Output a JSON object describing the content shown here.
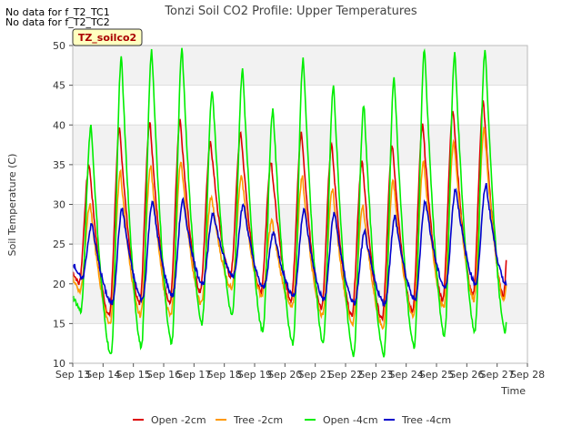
{
  "notes": [
    "No data for f_T2_TC1",
    "No data for f_T2_TC2"
  ],
  "badge": "TZ_soilco2",
  "chart_data": {
    "type": "line",
    "title": "Tonzi Soil CO2 Profile: Upper Temperatures",
    "xlabel": "Time",
    "ylabel": "Soil Temperature (C)",
    "xlim": [
      13,
      28
    ],
    "ylim": [
      10,
      50
    ],
    "x_ticks": [
      13,
      14,
      15,
      16,
      17,
      18,
      19,
      20,
      21,
      22,
      23,
      24,
      25,
      26,
      27,
      28
    ],
    "x_tick_labels": [
      "Sep 13",
      "Sep 14",
      "Sep 15",
      "Sep 16",
      "Sep 17",
      "Sep 18",
      "Sep 19",
      "Sep 20",
      "Sep 21",
      "Sep 22",
      "Sep 23",
      "Sep 24",
      "Sep 25",
      "Sep 26",
      "Sep 27",
      "Sep 28"
    ],
    "y_ticks": [
      10,
      15,
      20,
      25,
      30,
      35,
      40,
      45,
      50
    ],
    "grid": true,
    "legend_position": "bottom",
    "days": [
      13,
      14,
      15,
      16,
      17,
      18,
      19,
      20,
      21,
      22,
      23,
      24,
      25,
      26,
      27
    ],
    "series": [
      {
        "name": "Open -2cm",
        "color": "#dd0000",
        "daily_min": [
          20.0,
          16.0,
          17.5,
          17.5,
          19.0,
          21.0,
          19.0,
          18.0,
          17.0,
          16.0,
          15.5,
          16.5,
          18.0,
          18.5
        ],
        "daily_max": [
          35.0,
          39.5,
          40.5,
          40.5,
          38.0,
          39.0,
          35.5,
          39.0,
          37.5,
          35.5,
          37.5,
          40.0,
          42.0,
          43.0
        ],
        "final": 22.5
      },
      {
        "name": "Tree -2cm",
        "color": "#ff9900",
        "daily_min": [
          19.0,
          15.0,
          16.0,
          16.0,
          17.5,
          19.5,
          18.5,
          17.0,
          16.0,
          15.0,
          14.5,
          16.0,
          17.0,
          18.0
        ],
        "daily_max": [
          30.0,
          34.0,
          35.0,
          35.5,
          31.0,
          33.5,
          28.0,
          33.5,
          32.0,
          30.0,
          33.0,
          35.5,
          38.0,
          39.5
        ],
        "final": 21.0
      },
      {
        "name": "Open -4cm",
        "color": "#00ee00",
        "daily_min": [
          16.5,
          11.0,
          12.0,
          12.5,
          15.0,
          16.0,
          14.0,
          12.5,
          12.5,
          11.0,
          11.0,
          12.0,
          13.5,
          14.0
        ],
        "daily_max": [
          40.0,
          48.5,
          49.5,
          49.5,
          44.5,
          47.0,
          42.0,
          48.5,
          45.0,
          42.5,
          46.0,
          49.5,
          49.0,
          49.5
        ],
        "final": 17.5
      },
      {
        "name": "Tree -4cm",
        "color": "#0000cc",
        "daily_min": [
          20.5,
          17.5,
          18.0,
          18.5,
          20.0,
          21.0,
          19.5,
          18.5,
          18.0,
          17.5,
          17.5,
          18.0,
          19.5,
          20.0
        ],
        "daily_max": [
          27.5,
          29.5,
          30.5,
          30.5,
          29.0,
          30.0,
          26.5,
          29.5,
          29.0,
          26.5,
          28.5,
          30.5,
          32.0,
          32.5
        ],
        "final": 22.5
      }
    ]
  }
}
